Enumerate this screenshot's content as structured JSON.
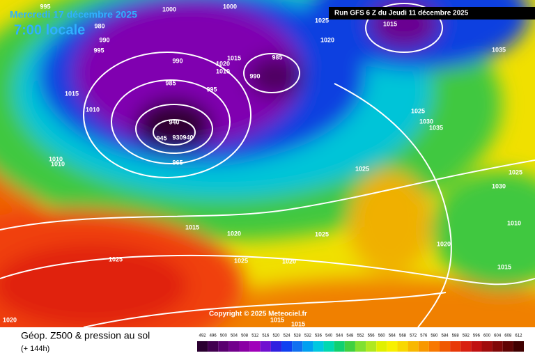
{
  "header": {
    "date": "Mercredi 17 décembre 2025",
    "time": "7:00 locale",
    "run": "Run GFS 6 Z du Jeudi 11 décembre 2025"
  },
  "copyright": "Copyright © 2025 Meteociel.fr",
  "footer": {
    "title": "Géop. Z500 & pression au sol",
    "lead": "(+ 144h)"
  },
  "legend": {
    "levels": [
      492,
      496,
      500,
      504,
      508,
      512,
      516,
      520,
      524,
      528,
      532,
      536,
      540,
      544,
      548,
      552,
      556,
      560,
      564,
      568,
      572,
      576,
      580,
      584,
      588,
      592,
      596,
      600,
      604,
      608,
      612
    ],
    "colors": [
      "#2a0030",
      "#420050",
      "#5a0070",
      "#72008c",
      "#8a00a4",
      "#a000ba",
      "#7010d0",
      "#3020e0",
      "#1040f0",
      "#1070f0",
      "#00a0f0",
      "#00c8e0",
      "#00d8b0",
      "#10d070",
      "#40d040",
      "#80e030",
      "#b0e820",
      "#e0f000",
      "#f8f000",
      "#f8d800",
      "#f8b800",
      "#f89800",
      "#f87800",
      "#f05800",
      "#e83808",
      "#d82010",
      "#c01010",
      "#a00c0c",
      "#800808",
      "#600404",
      "#400000"
    ]
  },
  "isobar_labels": [
    995,
    1000,
    1000,
    980,
    990,
    995,
    1025,
    1015,
    1020,
    1035,
    990,
    1015,
    1020,
    1010,
    985,
    990,
    985,
    995,
    1015,
    1010,
    1025,
    1030,
    1035,
    940,
    945,
    930,
    940,
    965,
    1010,
    1010,
    1025,
    1025,
    1030,
    1010,
    1015,
    1020,
    1025,
    1020,
    1025,
    1025,
    1020,
    1015,
    1020,
    1015,
    1015
  ]
}
